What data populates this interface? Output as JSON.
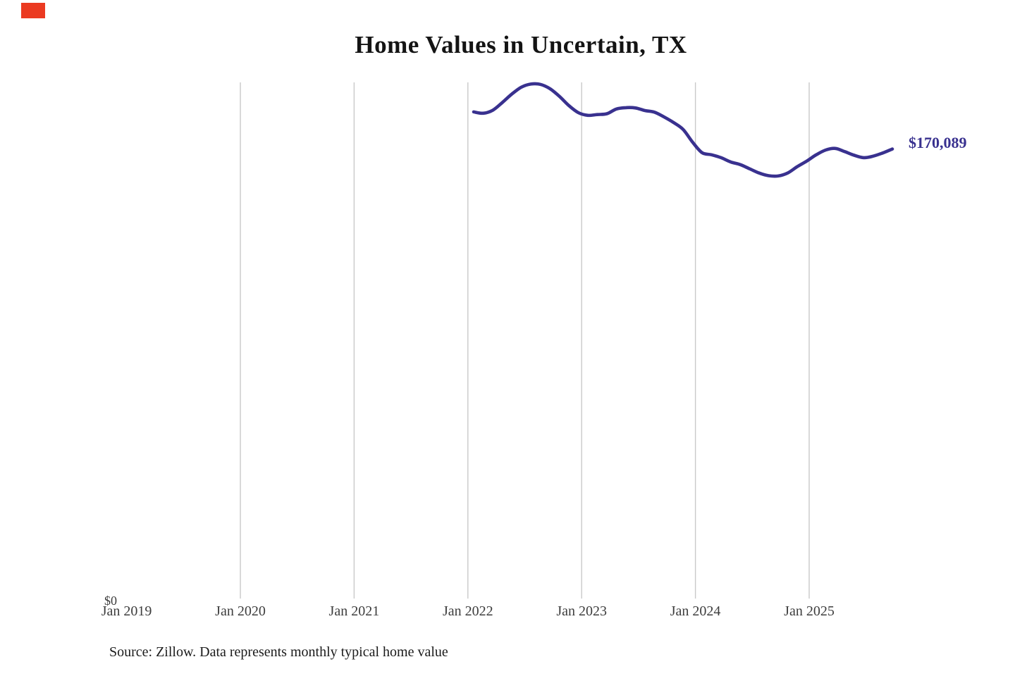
{
  "title": "Home Values in Uncertain, TX",
  "source_note": "Source: Zillow. Data represents monthly typical home value",
  "latest_value_label": "$170,089",
  "y_axis": {
    "zero_label": "$0"
  },
  "x_axis": {
    "labels": [
      "Jan 2019",
      "Jan 2020",
      "Jan 2021",
      "Jan 2022",
      "Jan 2023",
      "Jan 2024",
      "Jan 2025"
    ]
  },
  "colors": {
    "line": "#39318f",
    "gridline": "#c9c9c9",
    "title_text": "#141414",
    "axis_text": "#3d3d3d",
    "source_text": "#1b1b1b",
    "corner_marker": "#eb3a21",
    "background": "#ffffff"
  },
  "chart_data": {
    "type": "line",
    "title": "Home Values in Uncertain, TX",
    "xlabel": "",
    "ylabel": "",
    "x_tick_labels": [
      "Jan 2019",
      "Jan 2020",
      "Jan 2021",
      "Jan 2022",
      "Jan 2023",
      "Jan 2024",
      "Jan 2025"
    ],
    "ylim": [
      0,
      200000
    ],
    "y_baseline_label": "$0",
    "grid": "vertical-only",
    "legend": "none",
    "annotation": {
      "text": "$170,089",
      "value": 170089,
      "position": "line-end"
    },
    "series": [
      {
        "name": "Monthly typical home value",
        "color": "#39318f",
        "months": [
          "2022-02",
          "2022-03",
          "2022-04",
          "2022-05",
          "2022-06",
          "2022-07",
          "2022-08",
          "2022-09",
          "2022-10",
          "2022-11",
          "2022-12",
          "2023-01",
          "2023-02",
          "2023-03",
          "2023-04",
          "2023-05",
          "2023-06",
          "2023-07",
          "2023-08",
          "2023-09",
          "2023-10",
          "2023-11",
          "2023-12",
          "2024-01",
          "2024-02",
          "2024-03",
          "2024-04",
          "2024-05",
          "2024-06",
          "2024-07",
          "2024-08",
          "2024-09",
          "2024-10",
          "2024-11",
          "2024-12",
          "2025-01",
          "2025-02",
          "2025-03",
          "2025-04",
          "2025-05",
          "2025-06",
          "2025-07",
          "2025-08",
          "2025-09",
          "2025-10"
        ],
        "values": [
          184100,
          183600,
          184700,
          187600,
          190800,
          193400,
          194600,
          194500,
          192900,
          190000,
          186500,
          183800,
          182800,
          183100,
          183400,
          185200,
          185700,
          185600,
          184600,
          184000,
          182200,
          180100,
          177500,
          172700,
          168700,
          167900,
          166800,
          165200,
          164200,
          162600,
          161000,
          160000,
          159900,
          161000,
          163400,
          165500,
          167900,
          169700,
          170300,
          169100,
          167700,
          166800,
          167400,
          168600,
          170089
        ]
      }
    ]
  }
}
